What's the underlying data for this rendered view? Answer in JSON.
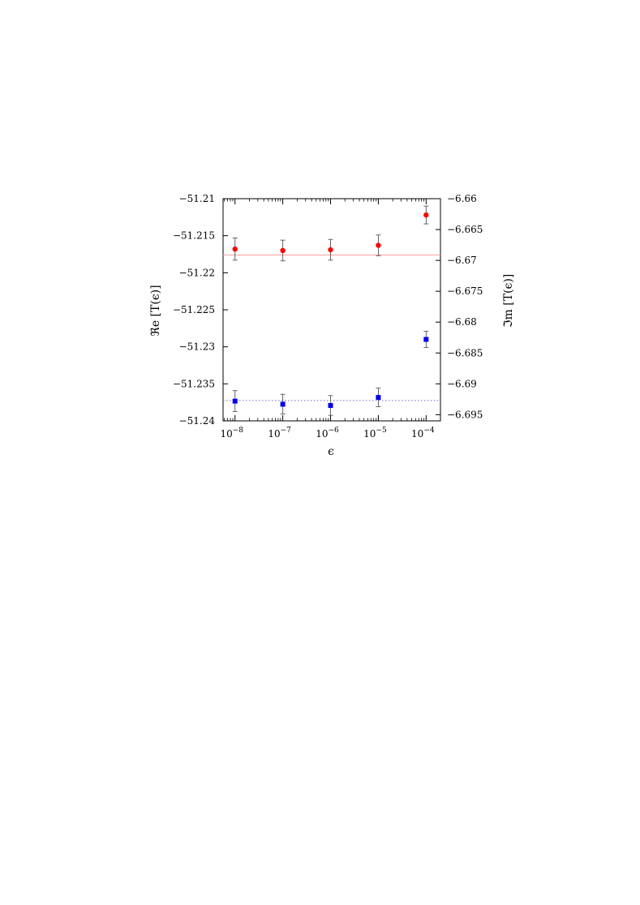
{
  "chart_data": {
    "type": "scatter",
    "title": "",
    "xlabel": "ϵ",
    "ylabel_left": "ℜe [T(ϵ)]",
    "ylabel_right": "ℑm [T(ϵ)]",
    "x_scale": "log",
    "x_ticks": [
      {
        "value": 1e-08,
        "base": "10",
        "exp": "−8"
      },
      {
        "value": 1e-07,
        "base": "10",
        "exp": "−7"
      },
      {
        "value": 1e-06,
        "base": "10",
        "exp": "−6"
      },
      {
        "value": 1e-05,
        "base": "10",
        "exp": "−5"
      },
      {
        "value": 0.0001,
        "base": "10",
        "exp": "−4"
      }
    ],
    "x_range_log10": [
      -8.25,
      -3.7
    ],
    "ylim_left": [
      -51.24,
      -51.21
    ],
    "y_ticks_left": [
      "−51.21",
      "−51.215",
      "−51.22",
      "−51.225",
      "−51.23",
      "−51.235",
      "−51.24"
    ],
    "ylim_right": [
      -6.696,
      -6.66
    ],
    "y_ticks_right": [
      "−6.66",
      "−6.665",
      "−6.67",
      "−6.675",
      "−6.68",
      "−6.685",
      "−6.69",
      "−6.695"
    ],
    "grid": false,
    "series": [
      {
        "axis": "left",
        "marker": "circle",
        "color": "#ff0000",
        "x": [
          1e-08,
          1e-07,
          1e-06,
          1e-05,
          0.0001
        ],
        "y": [
          -51.2168,
          -51.217,
          -51.2169,
          -51.2163,
          -51.2122
        ],
        "err": [
          0.0015,
          0.0014,
          0.0014,
          0.0014,
          0.0012
        ],
        "reference_line": {
          "y": -51.2176,
          "style": "solid",
          "color": "#ff9999"
        }
      },
      {
        "axis": "right",
        "marker": "square",
        "color": "#0000ee",
        "x": [
          1e-08,
          1e-07,
          1e-06,
          1e-05,
          0.0001
        ],
        "y": [
          -6.6928,
          -6.6933,
          -6.6935,
          -6.6922,
          -6.6828
        ],
        "err": [
          0.0017,
          0.0016,
          0.0016,
          0.0015,
          0.0013
        ],
        "reference_line": {
          "y": -6.6927,
          "style": "dotted",
          "color": "#6666dd"
        }
      }
    ]
  }
}
